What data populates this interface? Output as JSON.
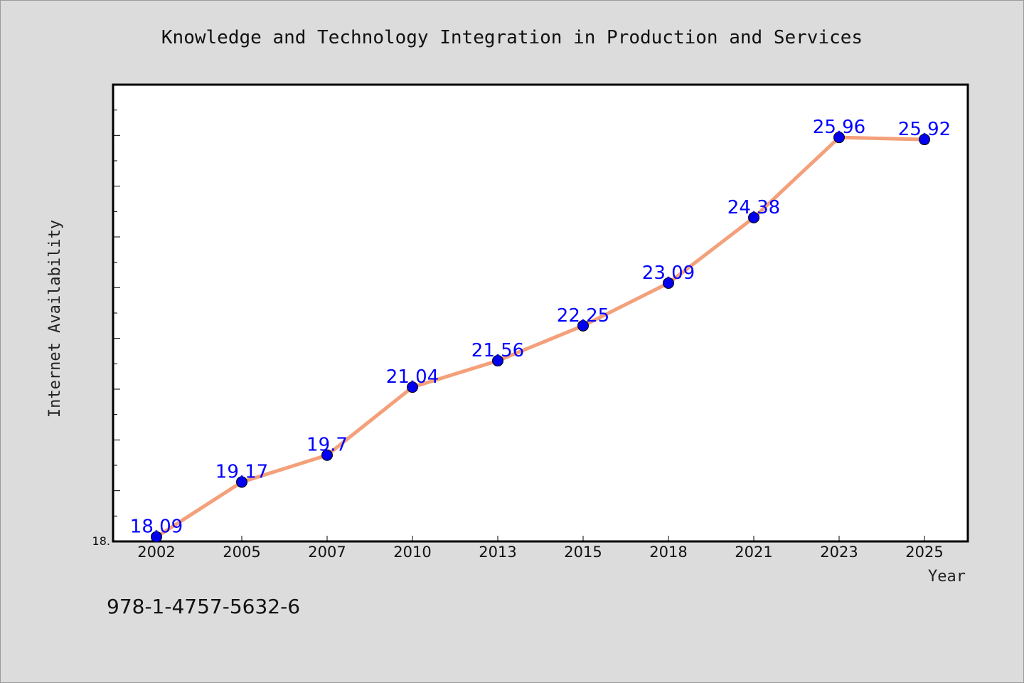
{
  "chart_data": {
    "type": "line",
    "title": "Knowledge and Technology Integration in Production and Services",
    "xlabel": "Year",
    "ylabel": "Internet Availability",
    "categories": [
      "2002",
      "2005",
      "2007",
      "2010",
      "2013",
      "2015",
      "2018",
      "2021",
      "2023",
      "2025"
    ],
    "series": [
      {
        "values": [
          18.09,
          19.17,
          19.7,
          21.04,
          21.56,
          22.25,
          23.09,
          24.38,
          25.96,
          25.92
        ],
        "data_labels": [
          "18.09",
          "19.17",
          "19.7",
          "21.04",
          "21.56",
          "22.25",
          "23.09",
          "24.38",
          "25.96",
          "25.92"
        ],
        "line_color": "#f4a07a",
        "marker_color": "#0000ee",
        "label_color": "#0000ff"
      }
    ],
    "ylim": [
      18.0,
      27.0
    ],
    "ylim_low_label": "18.",
    "grid": false,
    "legend": "none"
  },
  "footer_note": "978-1-4757-5632-6"
}
